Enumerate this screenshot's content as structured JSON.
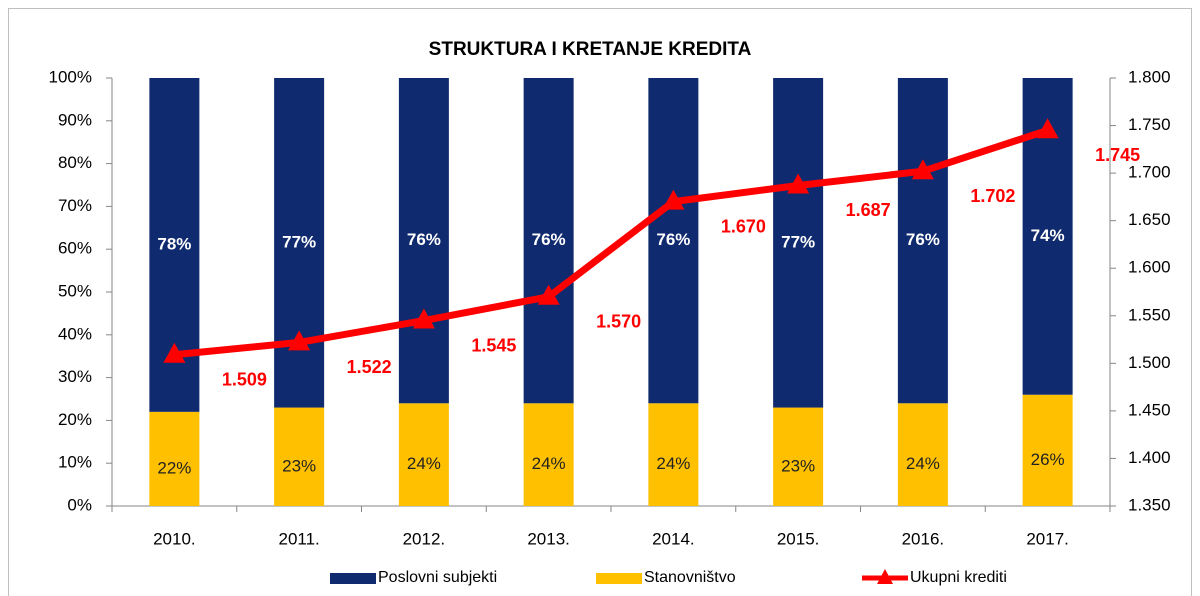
{
  "chart_data": {
    "type": "bar",
    "title": "STRUKTURA I KRETANJE KREDITA",
    "categories": [
      "2010.",
      "2011.",
      "2012.",
      "2013.",
      "2014.",
      "2015.",
      "2016.",
      "2017."
    ],
    "stacked": true,
    "legend": "bottom",
    "series": [
      {
        "name": "Poslovni subjekti",
        "color": "#0f2a6e",
        "values": [
          78,
          77,
          76,
          76,
          76,
          77,
          76,
          74
        ],
        "value_labels": [
          "78%",
          "77%",
          "76%",
          "76%",
          "76%",
          "77%",
          "76%",
          "74%"
        ]
      },
      {
        "name": "Stanovništvo",
        "color": "#ffc000",
        "values": [
          22,
          23,
          24,
          24,
          24,
          23,
          24,
          26
        ],
        "value_labels": [
          "22%",
          "23%",
          "24%",
          "24%",
          "24%",
          "23%",
          "24%",
          "26%"
        ]
      },
      {
        "name": "Ukupni krediti",
        "type": "line",
        "axis": "y2",
        "color": "#ff0000",
        "values": [
          1509,
          1522,
          1545,
          1570,
          1670,
          1687,
          1702,
          1745
        ],
        "value_labels": [
          "1.509",
          "1.522",
          "1.545",
          "1.570",
          "1.670",
          "1.687",
          "1.702",
          "1.745"
        ]
      }
    ],
    "ylim": [
      0,
      100
    ],
    "yticks": [
      {
        "value": 0,
        "label": "0%"
      },
      {
        "value": 10,
        "label": "10%"
      },
      {
        "value": 20,
        "label": "20%"
      },
      {
        "value": 30,
        "label": "30%"
      },
      {
        "value": 40,
        "label": "40%"
      },
      {
        "value": 50,
        "label": "50%"
      },
      {
        "value": 60,
        "label": "60%"
      },
      {
        "value": 70,
        "label": "70%"
      },
      {
        "value": 80,
        "label": "80%"
      },
      {
        "value": 90,
        "label": "90%"
      },
      {
        "value": 100,
        "label": "100%"
      }
    ],
    "y2lim": [
      1350,
      1800
    ],
    "y2ticks": [
      {
        "value": 1350,
        "label": "1.350"
      },
      {
        "value": 1400,
        "label": "1.400"
      },
      {
        "value": 1450,
        "label": "1.450"
      },
      {
        "value": 1500,
        "label": "1.500"
      },
      {
        "value": 1550,
        "label": "1.550"
      },
      {
        "value": 1600,
        "label": "1.600"
      },
      {
        "value": 1650,
        "label": "1.650"
      },
      {
        "value": 1700,
        "label": "1.700"
      },
      {
        "value": 1750,
        "label": "1.750"
      },
      {
        "value": 1800,
        "label": "1.800"
      }
    ]
  }
}
